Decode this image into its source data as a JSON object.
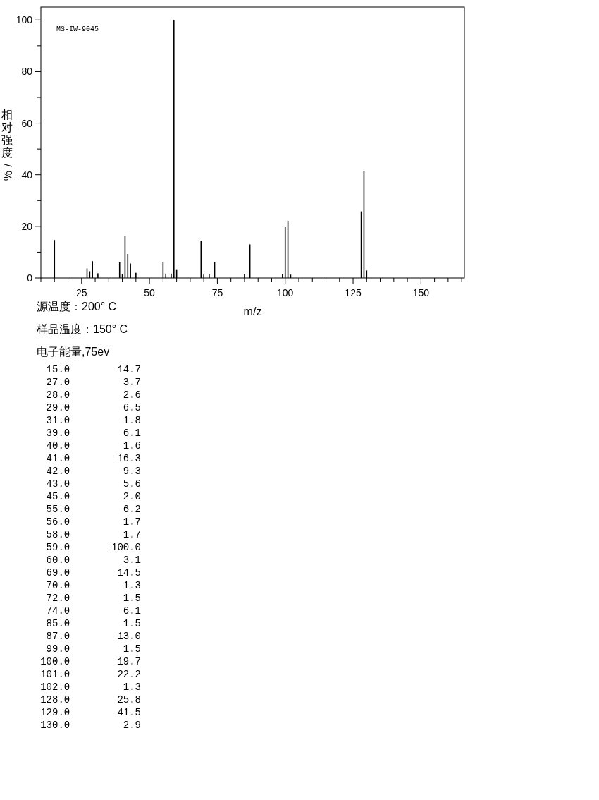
{
  "chart_data": {
    "type": "bar",
    "xlabel": "m/z",
    "ylabel": "相对强度/%",
    "annotations": [
      "MS-IW-9045",
      "源温度：200° C",
      "样品温度：150° C",
      "电子能量,75ev",
      "15.0        14.7",
      "27.0         3.7",
      "28.0         2.6",
      "29.0         6.5",
      "31.0         1.8",
      "39.0         6.1",
      "40.0         1.6",
      "41.0        16.3",
      "42.0         9.3",
      "43.0         5.6",
      "45.0         2.0",
      "55.0         6.2",
      "56.0         1.7",
      "58.0         1.7",
      "59.0       100.0",
      "60.0         3.1",
      "69.0        14.5",
      "70.0         1.3",
      "72.0         1.5",
      "74.0         6.1",
      "85.0         1.5",
      "87.0        13.0",
      "99.0         1.5",
      "100.0        19.7",
      "101.0        22.2",
      "102.0         1.3",
      "128.0        25.8",
      "129.0        41.5",
      "130.0         2.9"
    ],
    "x": [
      15,
      27,
      28,
      29,
      31,
      39,
      40,
      41,
      42,
      43,
      45,
      55,
      56,
      58,
      59,
      60,
      69,
      70,
      72,
      74,
      85,
      87,
      99,
      100,
      101,
      102,
      128,
      129,
      130
    ],
    "values": [
      14.7,
      3.7,
      2.6,
      6.5,
      1.8,
      6.1,
      1.6,
      16.3,
      9.3,
      5.6,
      2.0,
      6.2,
      1.7,
      1.7,
      100.0,
      3.1,
      14.5,
      1.3,
      1.5,
      6.1,
      1.5,
      13.0,
      1.5,
      19.7,
      22.2,
      1.3,
      25.8,
      41.5,
      2.9
    ],
    "color": "#000000",
    "xlim": [
      10,
      166
    ],
    "ylim": [
      0,
      105
    ],
    "xticks": [
      {
        "value": 10,
        "label": null
      },
      {
        "value": 15,
        "label": null
      },
      {
        "value": 20,
        "label": null
      },
      25,
      {
        "value": 30,
        "label": null
      },
      {
        "value": 35,
        "label": null
      },
      {
        "value": 40,
        "label": null
      },
      {
        "value": 45,
        "label": null
      },
      50,
      {
        "value": 55,
        "label": null
      },
      {
        "value": 60,
        "label": null
      },
      {
        "value": 65,
        "label": null
      },
      {
        "value": 70,
        "label": null
      },
      75,
      {
        "value": 80,
        "label": null
      },
      {
        "value": 85,
        "label": null
      },
      {
        "value": 90,
        "label": null
      },
      {
        "value": 95,
        "label": null
      },
      100,
      {
        "value": 105,
        "label": null
      },
      {
        "value": 110,
        "label": null
      },
      {
        "value": 115,
        "label": null
      },
      {
        "value": 120,
        "label": null
      },
      125,
      {
        "value": 130,
        "label": null
      },
      {
        "value": 135,
        "label": null
      },
      {
        "value": 140,
        "label": null
      },
      {
        "value": 145,
        "label": null
      },
      150,
      {
        "value": 155,
        "label": null
      },
      {
        "value": 160,
        "label": null
      },
      {
        "value": 165,
        "label": null
      }
    ],
    "yticks": [
      0,
      {
        "value": 10,
        "label": null
      },
      20,
      {
        "value": 30,
        "label": null
      },
      40,
      {
        "value": 50,
        "label": null
      },
      60,
      {
        "value": 70,
        "label": null
      },
      80,
      {
        "value": 90,
        "label": null
      },
      100
    ]
  }
}
